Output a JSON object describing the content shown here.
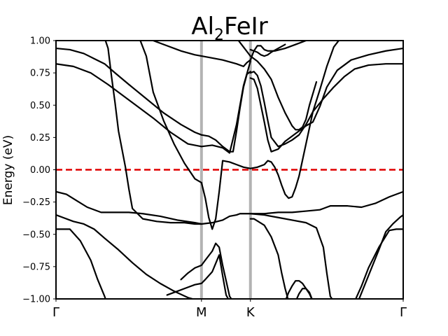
{
  "chart_data": {
    "type": "line",
    "title": "Al",
    "title_sub": "2",
    "title_rest": "FeIr",
    "ylabel": "Energy (eV)",
    "xlabel": "",
    "ylim": [
      -1.0,
      1.0
    ],
    "xlim": [
      0,
      1
    ],
    "yticks": [
      -1.0,
      -0.75,
      -0.5,
      -0.25,
      0.0,
      0.25,
      0.5,
      0.75,
      1.0
    ],
    "ytick_labels": [
      "−1.00",
      "−0.75",
      "−0.50",
      "−0.25",
      "0.00",
      "0.25",
      "0.50",
      "0.75",
      "1.00"
    ],
    "kpoints": [
      {
        "label": "Γ",
        "x": 0.0
      },
      {
        "label": "M",
        "x": 0.419
      },
      {
        "label": "K",
        "x": 0.56
      },
      {
        "label": "Γ",
        "x": 1.0
      }
    ],
    "fermi_level": 0.0,
    "colors": {
      "bands": "#000000",
      "fermi": "#e00000",
      "kline": "#b3b3b3"
    },
    "series": [
      {
        "x": [
          0.0,
          0.04,
          0.08,
          0.11,
          0.14,
          0.17,
          0.21,
          0.26,
          0.31,
          0.36,
          0.4,
          0.419
        ],
        "y": [
          0.94,
          0.93,
          0.9,
          0.86,
          0.82,
          0.75,
          0.66,
          0.55,
          0.44,
          0.35,
          0.29,
          0.27
        ]
      },
      {
        "x": [
          0.0,
          0.05,
          0.1,
          0.15,
          0.19,
          0.23,
          0.28,
          0.33,
          0.38,
          0.419
        ],
        "y": [
          0.82,
          0.8,
          0.75,
          0.66,
          0.58,
          0.5,
          0.4,
          0.29,
          0.2,
          0.18
        ]
      },
      {
        "x": [
          0.0,
          0.03,
          0.06,
          0.09,
          0.13,
          0.17,
          0.21,
          0.25,
          0.3,
          0.35,
          0.4,
          0.419
        ],
        "y": [
          -0.17,
          -0.19,
          -0.24,
          -0.29,
          -0.33,
          -0.33,
          -0.33,
          -0.34,
          -0.36,
          -0.39,
          -0.41,
          -0.42
        ]
      },
      {
        "x": [
          0.0,
          0.02,
          0.05,
          0.08,
          0.11,
          0.14,
          0.18,
          0.22,
          0.26,
          0.3,
          0.34,
          0.38,
          0.419
        ],
        "y": [
          -0.35,
          -0.37,
          -0.4,
          -0.42,
          -0.46,
          -0.53,
          -0.62,
          -0.72,
          -0.81,
          -0.88,
          -0.94,
          -0.99,
          -1.02
        ]
      },
      {
        "x": [
          0.0,
          0.04,
          0.07,
          0.1,
          0.12,
          0.14,
          0.145
        ],
        "y": [
          -0.46,
          -0.46,
          -0.55,
          -0.7,
          -0.85,
          -0.98,
          -1.02
        ]
      },
      {
        "x": [
          0.14,
          0.15,
          0.16,
          0.17,
          0.18,
          0.2,
          0.21,
          0.22,
          0.25,
          0.29,
          0.33,
          0.37,
          0.4,
          0.419
        ],
        "y": [
          1.02,
          0.94,
          0.72,
          0.52,
          0.3,
          0.02,
          -0.15,
          -0.3,
          -0.38,
          -0.4,
          -0.41,
          -0.41,
          -0.42,
          -0.42
        ]
      },
      {
        "x": [
          0.24,
          0.26,
          0.27,
          0.28,
          0.31,
          0.34,
          0.37,
          0.4,
          0.419
        ],
        "y": [
          1.02,
          0.88,
          0.74,
          0.6,
          0.38,
          0.2,
          0.05,
          -0.07,
          -0.1
        ]
      },
      {
        "x": [
          0.419,
          0.43,
          0.44,
          0.45,
          0.46,
          0.47,
          0.48,
          0.5,
          0.52,
          0.54,
          0.56
        ],
        "y": [
          -0.1,
          -0.22,
          -0.37,
          -0.46,
          -0.38,
          -0.17,
          0.07,
          0.06,
          0.04,
          0.02,
          0.01
        ]
      },
      {
        "x": [
          0.36,
          0.38,
          0.4,
          0.419,
          0.43,
          0.45,
          0.46,
          0.47,
          0.48,
          0.49,
          0.5,
          0.51,
          0.52
        ],
        "y": [
          -0.85,
          -0.8,
          -0.76,
          -0.74,
          -0.7,
          -0.63,
          -0.57,
          -0.6,
          -0.74,
          -0.86,
          -0.98,
          -1.02,
          -1.02
        ]
      },
      {
        "x": [
          0.32,
          0.35,
          0.38,
          0.4,
          0.419,
          0.43,
          0.45,
          0.47,
          0.48,
          0.49,
          0.5
        ],
        "y": [
          -0.97,
          -0.94,
          -0.91,
          -0.89,
          -0.88,
          -0.85,
          -0.79,
          -0.66,
          -0.82,
          -0.97,
          -1.02
        ]
      },
      {
        "x": [
          0.419,
          0.44,
          0.46,
          0.48,
          0.5,
          0.51,
          0.52,
          0.53,
          0.54,
          0.55,
          0.56
        ],
        "y": [
          0.27,
          0.26,
          0.23,
          0.18,
          0.14,
          0.14,
          0.3,
          0.48,
          0.64,
          0.74,
          0.76
        ]
      },
      {
        "x": [
          0.419,
          0.45,
          0.48,
          0.5,
          0.52,
          0.54,
          0.56
        ],
        "y": [
          0.18,
          0.19,
          0.17,
          0.13,
          0.35,
          0.65,
          0.84
        ]
      },
      {
        "x": [
          0.28,
          0.32,
          0.36,
          0.4,
          0.44,
          0.48,
          0.52,
          0.54,
          0.55,
          0.56
        ],
        "y": [
          1.0,
          0.96,
          0.92,
          0.89,
          0.87,
          0.85,
          0.82,
          0.8,
          0.83,
          0.85
        ]
      },
      {
        "x": [
          0.56,
          0.57,
          0.58,
          0.59,
          0.6,
          0.61,
          0.63,
          0.66,
          0.69,
          0.72,
          0.75
        ],
        "y": [
          0.85,
          0.92,
          0.96,
          0.96,
          0.93,
          0.92,
          0.92,
          0.94,
          0.97,
          1.0,
          1.02
        ]
      },
      {
        "x": [
          0.56,
          0.57,
          0.58,
          0.59,
          0.6,
          0.61,
          0.62,
          0.64,
          0.66
        ],
        "y": [
          0.93,
          0.92,
          0.91,
          0.89,
          0.88,
          0.89,
          0.91,
          0.94,
          0.97
        ]
      },
      {
        "x": [
          0.56,
          0.57,
          0.58,
          0.59,
          0.6,
          0.61,
          0.62,
          0.64,
          0.66,
          0.68,
          0.7,
          0.72,
          0.74,
          0.77,
          0.8,
          0.83,
          0.86,
          0.9,
          0.95,
          1.0
        ],
        "y": [
          0.75,
          0.76,
          0.73,
          0.65,
          0.52,
          0.38,
          0.25,
          0.18,
          0.2,
          0.23,
          0.27,
          0.35,
          0.45,
          0.55,
          0.64,
          0.72,
          0.78,
          0.81,
          0.82,
          0.82
        ]
      },
      {
        "x": [
          0.56,
          0.57,
          0.58,
          0.59,
          0.6,
          0.61,
          0.62,
          0.64,
          0.66,
          0.68,
          0.7,
          0.72,
          0.74,
          0.76,
          0.78,
          0.81,
          0.85,
          0.9,
          0.95,
          1.0
        ],
        "y": [
          0.71,
          0.7,
          0.63,
          0.5,
          0.37,
          0.23,
          0.14,
          0.16,
          0.22,
          0.26,
          0.3,
          0.34,
          0.37,
          0.49,
          0.64,
          0.77,
          0.85,
          0.89,
          0.92,
          0.94
        ]
      },
      {
        "x": [
          0.52,
          0.54,
          0.56,
          0.58,
          0.6,
          0.62,
          0.64,
          0.66,
          0.68,
          0.69,
          0.7,
          0.71,
          0.72,
          0.73,
          0.75
        ],
        "y": [
          1.02,
          0.95,
          0.88,
          0.84,
          0.78,
          0.7,
          0.56,
          0.44,
          0.34,
          0.31,
          0.31,
          0.33,
          0.39,
          0.5,
          0.68
        ]
      },
      {
        "x": [
          0.56,
          0.58,
          0.6,
          0.61,
          0.62,
          0.63,
          0.64,
          0.65,
          0.66,
          0.67,
          0.68,
          0.69,
          0.7,
          0.72,
          0.74,
          0.76,
          0.78,
          0.8,
          0.82
        ],
        "y": [
          0.01,
          0.02,
          0.04,
          0.07,
          0.06,
          0.02,
          -0.04,
          -0.12,
          -0.19,
          -0.22,
          -0.21,
          -0.14,
          -0.05,
          0.2,
          0.45,
          0.62,
          0.8,
          0.95,
          1.02
        ]
      },
      {
        "x": [
          0.56,
          0.6,
          0.64,
          0.68,
          0.72,
          0.76,
          0.77,
          0.78,
          0.79,
          0.8,
          0.84,
          0.88,
          0.92,
          0.96,
          1.0
        ],
        "y": [
          -0.34,
          -0.34,
          -0.33,
          -0.33,
          -0.32,
          -0.31,
          -0.3,
          -0.29,
          -0.28,
          -0.28,
          -0.28,
          -0.29,
          -0.26,
          -0.21,
          -0.17
        ]
      },
      {
        "x": [
          0.419,
          0.45,
          0.48,
          0.5,
          0.52,
          0.53,
          0.54,
          0.56,
          0.6,
          0.64,
          0.68,
          0.72,
          0.75,
          0.77,
          0.78,
          0.79,
          0.8
        ],
        "y": [
          -0.42,
          -0.41,
          -0.39,
          -0.36,
          -0.35,
          -0.34,
          -0.34,
          -0.34,
          -0.35,
          -0.37,
          -0.39,
          -0.41,
          -0.45,
          -0.6,
          -0.8,
          -0.98,
          -1.02
        ]
      },
      {
        "x": [
          0.56,
          0.57,
          0.6,
          0.62,
          0.64,
          0.65,
          0.66,
          0.67
        ],
        "y": [
          -0.38,
          -0.38,
          -0.43,
          -0.52,
          -0.66,
          -0.8,
          -0.92,
          -1.02
        ]
      },
      {
        "x": [
          0.66,
          0.67,
          0.68,
          0.69,
          0.7,
          0.71,
          0.72,
          0.73,
          0.74
        ],
        "y": [
          -1.02,
          -0.95,
          -0.9,
          -0.86,
          -0.86,
          -0.88,
          -0.92,
          -0.96,
          -1.02
        ]
      },
      {
        "x": [
          0.69,
          0.7,
          0.71,
          0.72,
          0.73,
          0.74
        ],
        "y": [
          -1.02,
          -0.96,
          -0.92,
          -0.92,
          -0.95,
          -1.02
        ]
      },
      {
        "x": [
          0.86,
          0.88,
          0.9,
          0.93,
          0.96,
          0.98,
          1.0
        ],
        "y": [
          -1.02,
          -0.9,
          -0.76,
          -0.6,
          -0.47,
          -0.46,
          -0.46
        ]
      },
      {
        "x": [
          0.87,
          0.9,
          0.93,
          0.95,
          0.97,
          0.99,
          1.0
        ],
        "y": [
          -1.02,
          -0.82,
          -0.62,
          -0.48,
          -0.42,
          -0.37,
          -0.35
        ]
      }
    ]
  }
}
